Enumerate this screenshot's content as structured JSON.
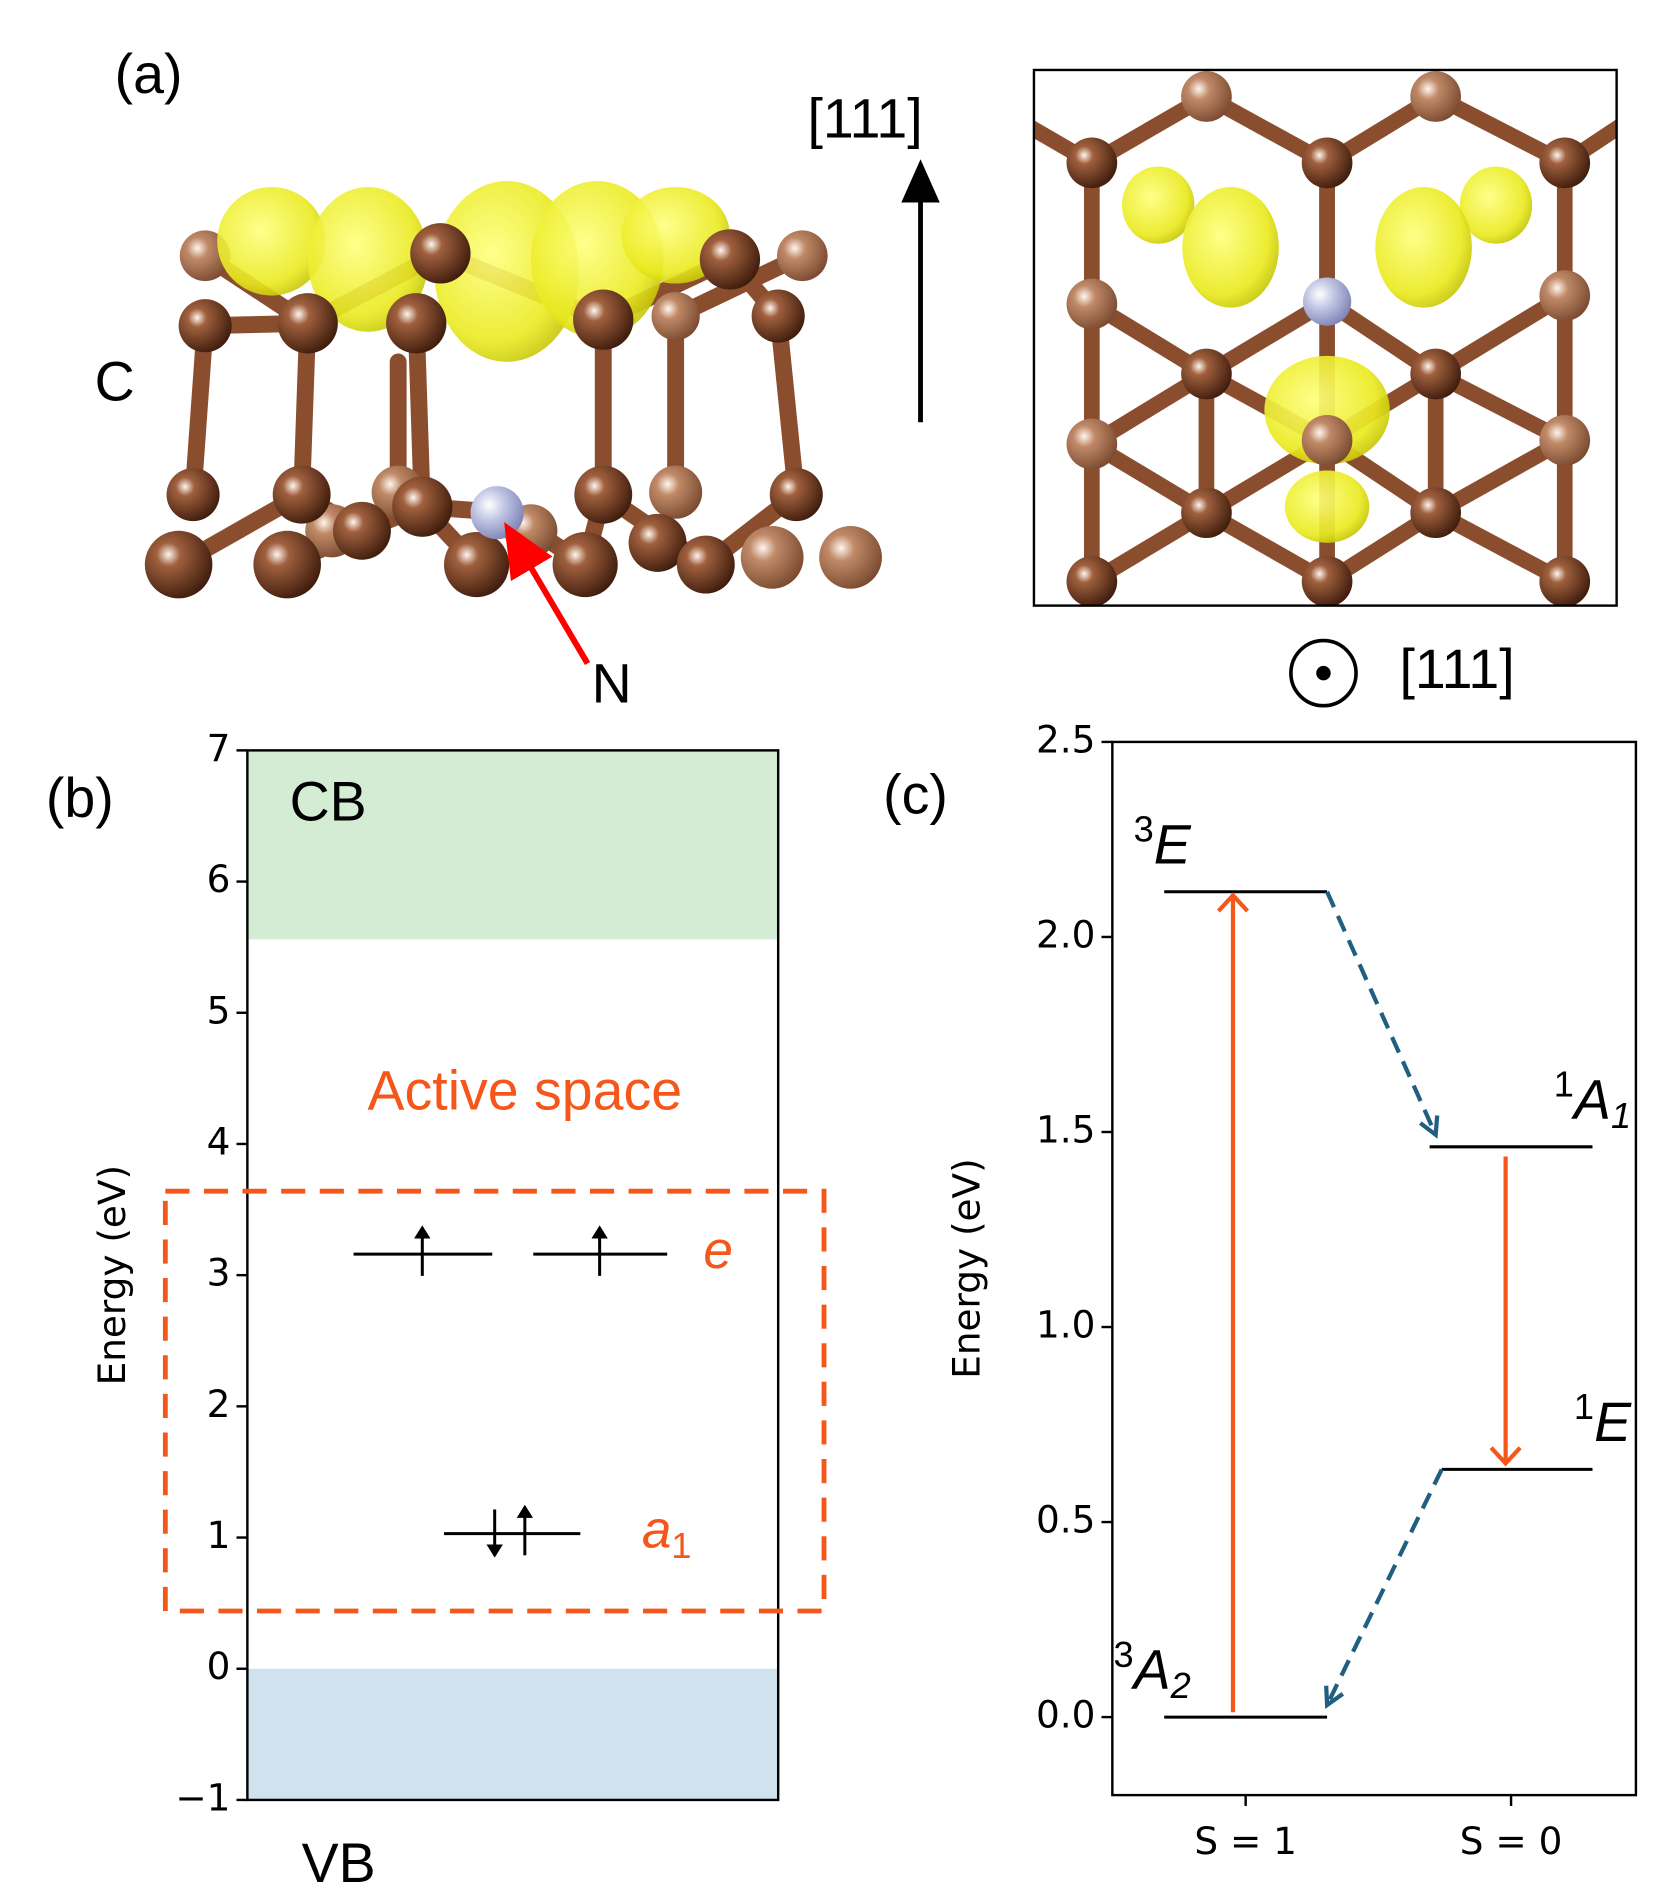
{
  "panel_a": {
    "label": "(a)",
    "side_view": {
      "axis_label": "[111]",
      "atom_labels": {
        "carbon": "C",
        "nitrogen": "N"
      }
    },
    "top_view": {
      "axis_label": "[111]"
    }
  },
  "chart_data": [
    {
      "type": "orbital_levels",
      "panel_label": "(b)",
      "ylabel": "Energy (eV)",
      "ylim": [
        -1,
        7
      ],
      "yticks": [
        {
          "value": -1,
          "label": "−1"
        },
        0,
        1,
        2,
        3,
        4,
        5,
        6,
        7
      ],
      "bands": [
        {
          "name": "CB",
          "range": [
            5.56,
            7
          ],
          "color": "#d4ebd4"
        },
        {
          "name": "VB",
          "range": [
            -1,
            0
          ],
          "color": "#d0e2ee"
        }
      ],
      "active_space": {
        "label": "Active space",
        "range": [
          0.44,
          3.64
        ],
        "color": "#f5561a"
      },
      "orbitals": [
        {
          "symbol": "e",
          "energy": 3.16
        },
        {
          "symbol": "a",
          "subscript": "1",
          "energy": 1.03
        }
      ]
    },
    {
      "type": "state_levels",
      "panel_label": "(c)",
      "ylabel": "Energy (eV)",
      "ylim": [
        -0.2,
        2.5
      ],
      "yticks": [
        {
          "value": 0,
          "label": "0.0"
        },
        0.5,
        {
          "value": 1,
          "label": "1.0"
        },
        1.5,
        {
          "value": 2,
          "label": "2.0"
        },
        2.5
      ],
      "categories": [
        "S = 1",
        "S = 0"
      ],
      "radiative_color": "#f5561a",
      "nonradiative_color": "#1f5f80",
      "states": [
        {
          "multiplicity": "3",
          "symbol": "A",
          "subscript": "2",
          "energy": 0
        },
        {
          "multiplicity": "3",
          "symbol": "E",
          "energy": 2.116
        },
        {
          "multiplicity": "1",
          "symbol": "A",
          "subscript": "1",
          "energy": 1.462
        },
        {
          "multiplicity": "1",
          "symbol": "E",
          "energy": 0.635
        }
      ]
    }
  ]
}
